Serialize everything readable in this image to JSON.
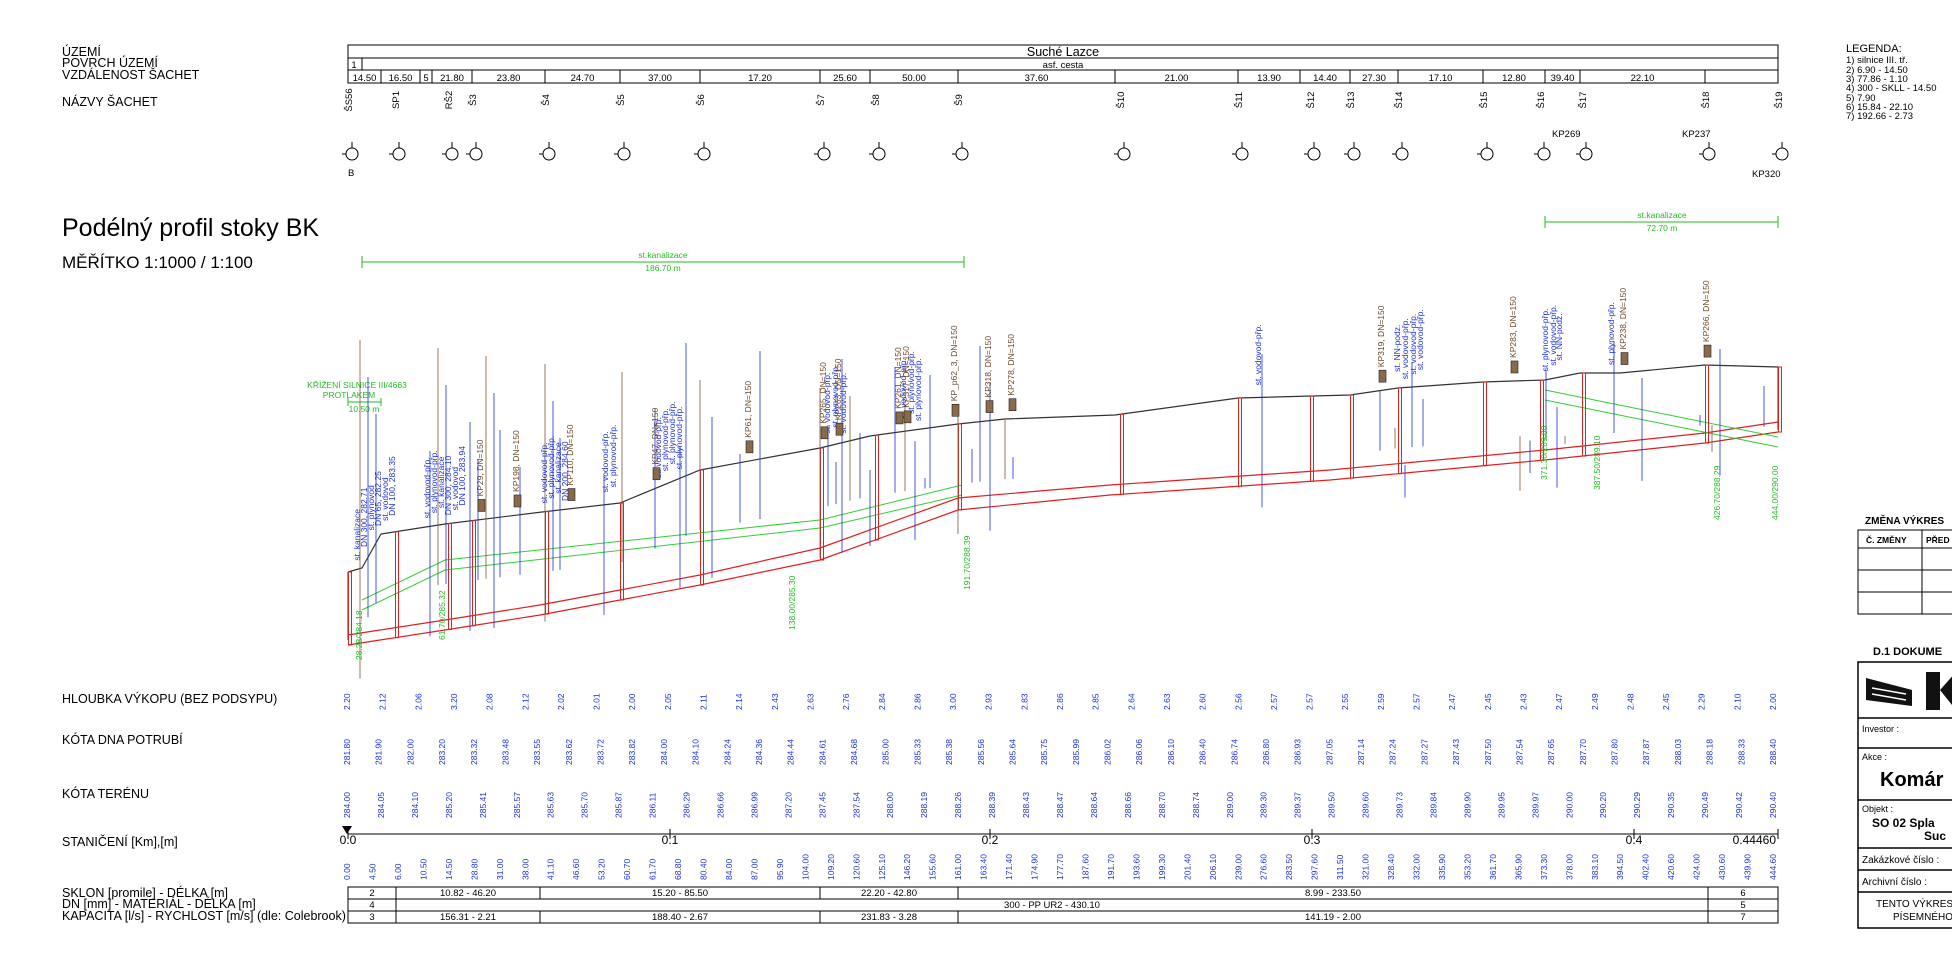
{
  "header_rows": {
    "row_labels": [
      "ÚZEMÍ",
      "POVRCH ÚZEMÍ",
      "VZDÁLENOST ŠACHET",
      "NÁZVY ŠACHET"
    ],
    "territory": "Suché Lazce",
    "surface_marker": "1",
    "surface": "asf. cesta",
    "distances": [
      "14.50",
      "16.50",
      "5",
      "21.80",
      "23.80",
      "24.70",
      "37.00",
      "17.20",
      "25.60",
      "50.00",
      "37.60",
      "21.00",
      "13.90",
      "14.40",
      "27.30",
      "17.10",
      "12.80",
      "39.40",
      "22.10"
    ],
    "manholes": [
      "ŠS56",
      "SP1",
      "RŠ2",
      "Š3",
      "Š4",
      "Š5",
      "Š6",
      "Š7",
      "Š8",
      "Š9",
      "Š10",
      "Š11",
      "Š12",
      "Š13",
      "Š14",
      "Š15",
      "Š16",
      "Š17",
      "Š18",
      "Š19"
    ],
    "kp_labels": [
      "KP269",
      "KP237",
      "KP320"
    ],
    "b_label": "B"
  },
  "legend": {
    "title": "LEGENDA:",
    "items": [
      "1)  silnice III. tř.",
      "2)  6.90 - 14.50",
      "3)  77.86 - 1.10",
      "4)  300 - SKLL - 14.50",
      "5)  7.90",
      "6)  15.84 - 22.10",
      "7)  192.66 - 2.73"
    ]
  },
  "drawing": {
    "title": "Podélný profil stoky BK",
    "scale": "MĚŘÍTKO 1:1000 / 1:100",
    "crossing_title": "KŘÍŽENÍ SILNICE III/4663",
    "crossing_method": "PROTLAKEM",
    "crossing_length": "10.50 m",
    "sewer_span_1_name": "st.kanalizace",
    "sewer_span_1_len": "186.70 m",
    "sewer_span_2_name": "st.kanalizace",
    "sewer_span_2_len": "72.70 m",
    "vertical_labels_blue": [
      "st. kanalizace",
      "DN 300, 282.71",
      "st. plynovod",
      "DN 65, 282.25",
      "st. vodovod",
      "DN 100, 283.35",
      "st. vodovod-přp.",
      "st. plynovod-přp.",
      "st. kanalizace",
      "DN 300, 284.10",
      "st. vodovod",
      "DN 100, 283.94",
      "st. vodovod-přp.",
      "st. plynovod-přp.",
      "st. kanalizace",
      "DN 200, 284.60",
      "st. vodovod-přp.",
      "st. plynovod-přp.",
      "st. vodovod-přp.",
      "st. plynovod-přp.",
      "st. plynovod-přp.",
      "st. plynovod-přp.",
      "st. vodovod-přp.",
      "st. plynovod-přp.",
      "st. vodovod-přp.",
      "st. vodovod-přp.",
      "st. plynovod-přp.",
      "st. plynovod-přp.",
      "st. vodovod-přp.",
      "st. NN-podz.",
      "st. vodovod-přp.",
      "st. vodovod-přp.",
      "st. vodovod-přp.",
      "st. plynovod-přp.",
      "st. vodovod-přp.",
      "st. NN-podz.",
      "st. plynovod-přp."
    ],
    "vertical_labels_brown": [
      "KP29, DN=150",
      "KP198, DN=150",
      "KP110, DN=150",
      "KP47, DN=150",
      "KP61, DN=150",
      "KP265, DN=150",
      "KP263, DN=150",
      "KP261, DN=150",
      "KP317, DN=150",
      "KP_p62_3, DN=150",
      "KP318, DN=150",
      "KP278, DN=150",
      "KP319, DN=150",
      "KP283, DN=150",
      "KP238, DN=150",
      "KP266, DN=150"
    ],
    "green_crossings": [
      "28.28/284.18",
      "61.70/285.32",
      "138.00/285.30",
      "191.70/288.39",
      "371.30/289.80",
      "387.50/289.10",
      "426.70/288.29",
      "444.00/290.00"
    ]
  },
  "bottom_rows": {
    "labels": [
      "HLOUBKA VÝKOPU (BEZ PODSYPU)",
      "KÓTA DNA POTRUBÍ",
      "KÓTA TERÉNU",
      "STANIČENÍ [Km],[m]"
    ],
    "depth": [
      "2.20",
      "2.12",
      "2.06",
      "3.20",
      "2.08",
      "2.12",
      "2.02",
      "2.01",
      "2.00",
      "2.05",
      "2.11",
      "2.14",
      "2.43",
      "2.63",
      "2.76",
      "2.84",
      "2.86",
      "3.00",
      "2.93",
      "2.83",
      "2.86",
      "2.85",
      "2.64",
      "2.63",
      "2.60",
      "2.56",
      "2.57",
      "2.57",
      "2.55",
      "2.59",
      "2.57",
      "2.47",
      "2.45",
      "2.43",
      "2.47",
      "2.49",
      "2.48",
      "2.45",
      "2.29",
      "2.10",
      "2.00"
    ],
    "invert": [
      "281.80",
      "281.90",
      "282.00",
      "283.20",
      "283.32",
      "283.48",
      "283.55",
      "283.62",
      "283.72",
      "283.82",
      "284.00",
      "284.10",
      "284.24",
      "284.36",
      "284.44",
      "284.61",
      "284.68",
      "285.00",
      "285.33",
      "285.38",
      "285.56",
      "285.64",
      "285.75",
      "285.99",
      "286.02",
      "286.06",
      "286.10",
      "286.40",
      "286.74",
      "286.80",
      "286.93",
      "287.05",
      "287.14",
      "287.24",
      "287.27",
      "287.43",
      "287.50",
      "287.54",
      "287.65",
      "287.70",
      "287.80",
      "287.87",
      "288.03",
      "288.18",
      "288.33",
      "288.40"
    ],
    "terrain": [
      "284.00",
      "284.05",
      "284.10",
      "285.20",
      "285.41",
      "285.57",
      "285.63",
      "285.70",
      "285.87",
      "286.11",
      "286.29",
      "286.66",
      "286.99",
      "287.20",
      "287.45",
      "287.54",
      "288.00",
      "288.19",
      "288.26",
      "288.39",
      "288.43",
      "288.47",
      "288.64",
      "288.66",
      "288.70",
      "288.74",
      "289.00",
      "289.30",
      "289.37",
      "289.50",
      "289.60",
      "289.73",
      "289.84",
      "289.90",
      "289.95",
      "289.97",
      "290.00",
      "290.20",
      "290.29",
      "290.35",
      "290.49",
      "290.42",
      "290.40"
    ],
    "chainage_marks": [
      "0.0",
      "0.1",
      "0.2",
      "0.3",
      "0.4",
      "0.44460"
    ],
    "chainage_values": [
      "0.00",
      "4.50",
      "6.00",
      "10.50",
      "14.50",
      "28.80",
      "31.00",
      "38.00",
      "41.10",
      "46.60",
      "53.20",
      "60.70",
      "61.70",
      "68.80",
      "80.40",
      "84.00",
      "87.00",
      "95.90",
      "104.00",
      "109.20",
      "120.60",
      "125.10",
      "146.20",
      "155.60",
      "161.00",
      "163.40",
      "171.40",
      "174.90",
      "177.70",
      "187.60",
      "191.70",
      "193.60",
      "199.30",
      "201.40",
      "206.10",
      "239.00",
      "276.60",
      "283.50",
      "297.60",
      "311.50",
      "321.00",
      "328.40",
      "332.00",
      "335.90",
      "353.20",
      "361.70",
      "365.90",
      "373.30",
      "378.00",
      "383.10",
      "394.50",
      "402.40",
      "420.60",
      "424.00",
      "430.60",
      "439.90",
      "444.60"
    ]
  },
  "lower_table": {
    "row_labels": [
      "SKLON [promile] - DÉLKA [m]",
      "DN [mm] - MATERIÁL - DÉLKA [m]",
      "KAPACITA [l/s] - RYCHLOST [m/s] (dle: Colebrook)"
    ],
    "slope": [
      "2",
      "10.82 - 46.20",
      "15.20 - 85.50",
      "22.20 - 42.80",
      "8.99 - 233.50",
      "6"
    ],
    "dn": [
      "4",
      "300 - PP UR2 - 430.10",
      "5"
    ],
    "capacity": [
      "3",
      "156.31 - 2.21",
      "188.40 - 2.67",
      "231.83 - 3.28",
      "141.19 - 2.00",
      "7"
    ]
  },
  "title_block": {
    "change_title": "ZMĚNA VÝKRES",
    "change_col1": "Č. ZMĚNY",
    "change_col2": "PŘED",
    "doc_title": "D.1  DOKUME",
    "investor": "Investor :",
    "akce": "Akce :",
    "akce_value": "Komár",
    "objekt": "Objekt :",
    "objekt_value": "SO 02 Spla",
    "objekt_value2": "Suc",
    "zakazkove": "Zakázkové číslo :",
    "archivni": "Archivní číslo :",
    "note1": "TENTO VÝKRES",
    "note2": "PÍSEMNÉHO"
  },
  "colors": {
    "terrain_line": "#333333",
    "pipe": "#e02020",
    "existing_sewer": "#22cc22",
    "utility": "#1b2fd8",
    "connection": "#7a5a3a"
  }
}
